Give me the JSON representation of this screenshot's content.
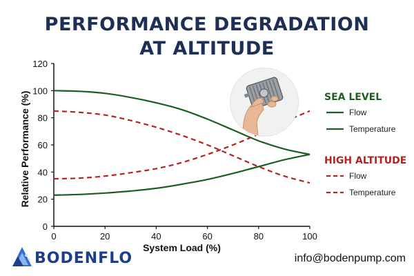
{
  "title_lines": [
    "PERFORMANCE DEGRADATION",
    "AT ALTITUDE"
  ],
  "brand": {
    "name": "BODENFLO"
  },
  "contact": {
    "email": "info@bodenpump.com"
  },
  "photo": {
    "icon": "hand-holding-pump-icon"
  },
  "colors": {
    "sea_level": "#1b5e20",
    "high_altitude": "#b22222",
    "title": "#1d2f54",
    "brand": "#1d3f8a"
  },
  "chart_data": {
    "type": "line",
    "xlabel": "System Load (%)",
    "ylabel": "Relative Performance (%)",
    "xlim": [
      0,
      100
    ],
    "ylim": [
      0,
      120
    ],
    "xticks": [
      0,
      20,
      40,
      60,
      80,
      100
    ],
    "yticks": [
      0,
      20,
      40,
      60,
      80,
      100,
      120
    ],
    "grid": false,
    "legend_position": "right",
    "legend_groups": [
      {
        "title": "SEA LEVEL",
        "color": "#1b5e20",
        "dashed": false,
        "entries": [
          "Flow",
          "Temperature"
        ]
      },
      {
        "title": "HIGH ALTITUDE",
        "color": "#b22222",
        "dashed": true,
        "entries": [
          "Flow",
          "Temperature"
        ]
      }
    ],
    "series": [
      {
        "group": "SEA LEVEL",
        "name": "Flow",
        "color": "#1b5e20",
        "dashed": false,
        "x": [
          0,
          10,
          20,
          30,
          40,
          50,
          60,
          70,
          80,
          90,
          100
        ],
        "y": [
          100,
          99.5,
          98,
          95,
          91,
          86,
          79,
          71,
          63,
          57,
          53
        ]
      },
      {
        "group": "SEA LEVEL",
        "name": "Temperature",
        "color": "#1b5e20",
        "dashed": false,
        "x": [
          0,
          10,
          20,
          30,
          40,
          50,
          60,
          70,
          80,
          90,
          100
        ],
        "y": [
          23,
          23.5,
          24.5,
          26,
          28,
          31,
          34.5,
          39,
          44,
          49,
          53
        ]
      },
      {
        "group": "HIGH ALTITUDE",
        "name": "Flow",
        "color": "#b22222",
        "dashed": true,
        "x": [
          0,
          10,
          20,
          30,
          40,
          50,
          60,
          70,
          80,
          90,
          100
        ],
        "y": [
          85,
          84,
          82,
          78,
          73,
          67,
          60,
          52,
          44,
          37,
          32
        ]
      },
      {
        "group": "HIGH ALTITUDE",
        "name": "Temperature",
        "color": "#b22222",
        "dashed": true,
        "x": [
          0,
          10,
          20,
          30,
          40,
          50,
          60,
          70,
          80,
          90,
          100
        ],
        "y": [
          35,
          35.5,
          37,
          39.5,
          42.5,
          47,
          53,
          60,
          68,
          77,
          85
        ]
      }
    ]
  }
}
